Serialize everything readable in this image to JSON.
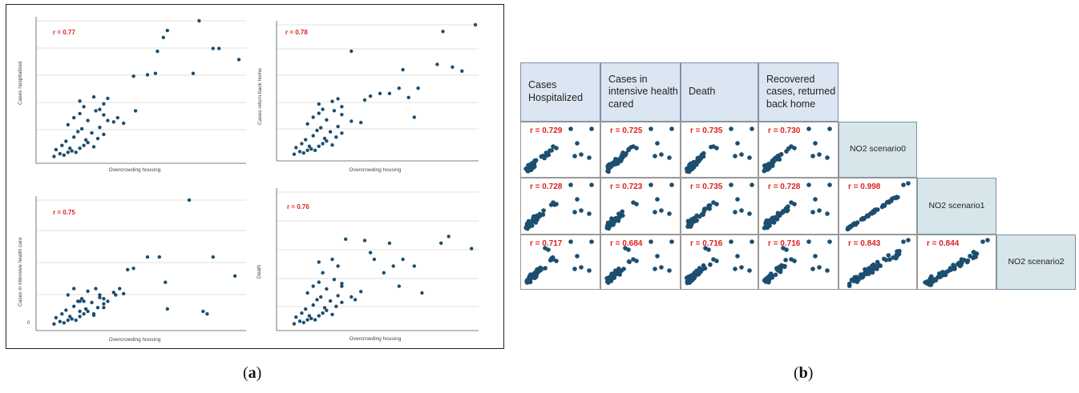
{
  "captions": {
    "a": "a",
    "b": "b"
  },
  "colors": {
    "dots": "#1c4e70",
    "r_label": "#e02020",
    "header_bg": "#dce6f2",
    "diag_bg": "#d6e6ea",
    "grid": "#d9d9d9"
  },
  "panel_a": {
    "subplots": [
      {
        "r_label": "r = 0.77",
        "ylabel": "Cases hospitalized",
        "xlabel": "Overcrowding housing",
        "zero_label": ""
      },
      {
        "r_label": "r = 0.78",
        "ylabel": "Cases return back home",
        "xlabel": "Overcrowding housing",
        "zero_label": ""
      },
      {
        "r_label": "r = 0.75",
        "ylabel": "Cases in intensive health care",
        "xlabel": "Overcrowding housing",
        "zero_label": "0"
      },
      {
        "r_label": "r = 0.76",
        "ylabel": "Death",
        "xlabel": "Overcrowding housing",
        "zero_label": ""
      }
    ]
  },
  "panel_b": {
    "headers": [
      "Cases Hospitalized",
      "Cases in intensive health cared",
      "Death",
      "Recovered cases, returned back home"
    ],
    "diagonal": [
      "NO2 scenario0",
      "NO2 scenario1",
      "NO2 scenario2"
    ],
    "rows": [
      [
        "r = 0.729",
        "r = 0.725",
        "r = 0.735",
        "r = 0.730"
      ],
      [
        "r = 0.728",
        "r = 0.723",
        "r = 0.735",
        "r = 0.728",
        "r = 0.998"
      ],
      [
        "r = 0.717",
        "r = 0.684",
        "r = 0.716",
        "r = 0.716",
        "r = 0.843",
        "r = 0.844"
      ]
    ]
  },
  "chart_data": [
    {
      "type": "scatter",
      "title": "",
      "xlabel": "Overcrowding housing",
      "ylabel": "Cases hospitalized",
      "annotation": "r = 0.77",
      "x": [
        0.05,
        0.08,
        0.1,
        0.12,
        0.14,
        0.16,
        0.18,
        0.2,
        0.22,
        0.25,
        0.27,
        0.3,
        0.06,
        0.09,
        0.11,
        0.13,
        0.15,
        0.17,
        0.19,
        0.21,
        0.24,
        0.28,
        0.12,
        0.15,
        0.18,
        0.22,
        0.26,
        0.3,
        0.35,
        0.4,
        0.18,
        0.25,
        0.3,
        0.2,
        0.28,
        0.32,
        0.45,
        0.52,
        0.56,
        0.6,
        0.62,
        0.75,
        0.85,
        0.88,
        0.98,
        0.78,
        0.57,
        0.37,
        0.46,
        0.32
      ],
      "y": [
        0.02,
        0.04,
        0.03,
        0.05,
        0.06,
        0.05,
        0.08,
        0.1,
        0.12,
        0.09,
        0.15,
        0.18,
        0.07,
        0.1,
        0.13,
        0.08,
        0.16,
        0.2,
        0.22,
        0.14,
        0.19,
        0.23,
        0.25,
        0.3,
        0.33,
        0.28,
        0.35,
        0.32,
        0.27,
        0.26,
        0.42,
        0.45,
        0.4,
        0.38,
        0.36,
        0.44,
        0.6,
        0.61,
        0.62,
        0.88,
        0.93,
        0.62,
        0.8,
        0.8,
        0.72,
        1.0,
        0.78,
        0.3,
        0.35,
        0.28
      ]
    },
    {
      "type": "scatter",
      "title": "",
      "xlabel": "Overcrowding housing",
      "ylabel": "Cases return back home",
      "annotation": "r = 0.78",
      "x": [
        0.05,
        0.08,
        0.1,
        0.12,
        0.14,
        0.16,
        0.18,
        0.2,
        0.22,
        0.25,
        0.27,
        0.3,
        0.06,
        0.09,
        0.11,
        0.13,
        0.15,
        0.17,
        0.19,
        0.21,
        0.24,
        0.28,
        0.12,
        0.15,
        0.18,
        0.22,
        0.26,
        0.3,
        0.35,
        0.4,
        0.18,
        0.25,
        0.3,
        0.2,
        0.28,
        0.42,
        0.45,
        0.5,
        0.55,
        0.6,
        0.68,
        0.8,
        0.83,
        0.88,
        0.93,
        1.0,
        0.35,
        0.62,
        0.65,
        0.7
      ],
      "y": [
        0.02,
        0.04,
        0.03,
        0.05,
        0.06,
        0.05,
        0.08,
        0.1,
        0.12,
        0.09,
        0.15,
        0.18,
        0.07,
        0.1,
        0.13,
        0.08,
        0.16,
        0.2,
        0.22,
        0.14,
        0.19,
        0.23,
        0.25,
        0.3,
        0.33,
        0.28,
        0.35,
        0.32,
        0.27,
        0.26,
        0.4,
        0.42,
        0.38,
        0.36,
        0.44,
        0.43,
        0.46,
        0.48,
        0.48,
        0.52,
        0.3,
        0.7,
        0.95,
        0.68,
        0.65,
        1.0,
        0.8,
        0.66,
        0.45,
        0.52
      ]
    },
    {
      "type": "scatter",
      "title": "",
      "xlabel": "Overcrowding housing",
      "ylabel": "Cases in intensive health care",
      "annotation": "r = 0.75",
      "ylim_label": "0",
      "x": [
        0.05,
        0.08,
        0.1,
        0.12,
        0.14,
        0.16,
        0.18,
        0.2,
        0.22,
        0.25,
        0.27,
        0.3,
        0.06,
        0.09,
        0.11,
        0.13,
        0.15,
        0.17,
        0.19,
        0.21,
        0.24,
        0.28,
        0.12,
        0.15,
        0.18,
        0.22,
        0.26,
        0.3,
        0.35,
        0.4,
        0.18,
        0.25,
        0.3,
        0.2,
        0.28,
        0.36,
        0.42,
        0.45,
        0.52,
        0.58,
        0.61,
        0.62,
        0.8,
        0.82,
        0.85,
        0.96,
        0.73,
        0.32,
        0.38
      ],
      "y": [
        0.02,
        0.04,
        0.03,
        0.05,
        0.06,
        0.05,
        0.08,
        0.1,
        0.12,
        0.09,
        0.15,
        0.18,
        0.07,
        0.1,
        0.13,
        0.08,
        0.16,
        0.2,
        0.22,
        0.14,
        0.19,
        0.23,
        0.25,
        0.3,
        0.2,
        0.28,
        0.3,
        0.22,
        0.27,
        0.26,
        0.12,
        0.1,
        0.15,
        0.2,
        0.25,
        0.25,
        0.45,
        0.46,
        0.55,
        0.55,
        0.35,
        0.14,
        0.12,
        0.1,
        0.55,
        0.4,
        1.0,
        0.2,
        0.3
      ]
    },
    {
      "type": "scatter",
      "title": "",
      "xlabel": "Overcrowding housing",
      "ylabel": "Death",
      "annotation": "r = 0.76",
      "x": [
        0.05,
        0.08,
        0.1,
        0.12,
        0.14,
        0.16,
        0.18,
        0.2,
        0.22,
        0.25,
        0.27,
        0.3,
        0.06,
        0.09,
        0.11,
        0.13,
        0.15,
        0.17,
        0.19,
        0.21,
        0.24,
        0.28,
        0.12,
        0.15,
        0.18,
        0.22,
        0.26,
        0.3,
        0.35,
        0.4,
        0.18,
        0.25,
        0.3,
        0.2,
        0.28,
        0.45,
        0.47,
        0.32,
        0.42,
        0.55,
        0.57,
        0.68,
        0.72,
        0.62,
        0.82,
        0.86,
        0.98,
        0.37,
        0.52,
        0.6
      ],
      "y": [
        0.02,
        0.04,
        0.03,
        0.05,
        0.06,
        0.05,
        0.08,
        0.1,
        0.12,
        0.09,
        0.15,
        0.18,
        0.07,
        0.1,
        0.13,
        0.08,
        0.16,
        0.2,
        0.22,
        0.14,
        0.19,
        0.23,
        0.25,
        0.3,
        0.33,
        0.28,
        0.35,
        0.32,
        0.22,
        0.26,
        0.48,
        0.5,
        0.3,
        0.4,
        0.45,
        0.55,
        0.5,
        0.65,
        0.64,
        0.62,
        0.45,
        0.45,
        0.25,
        0.5,
        0.62,
        0.67,
        0.58,
        0.2,
        0.4,
        0.3
      ]
    }
  ]
}
